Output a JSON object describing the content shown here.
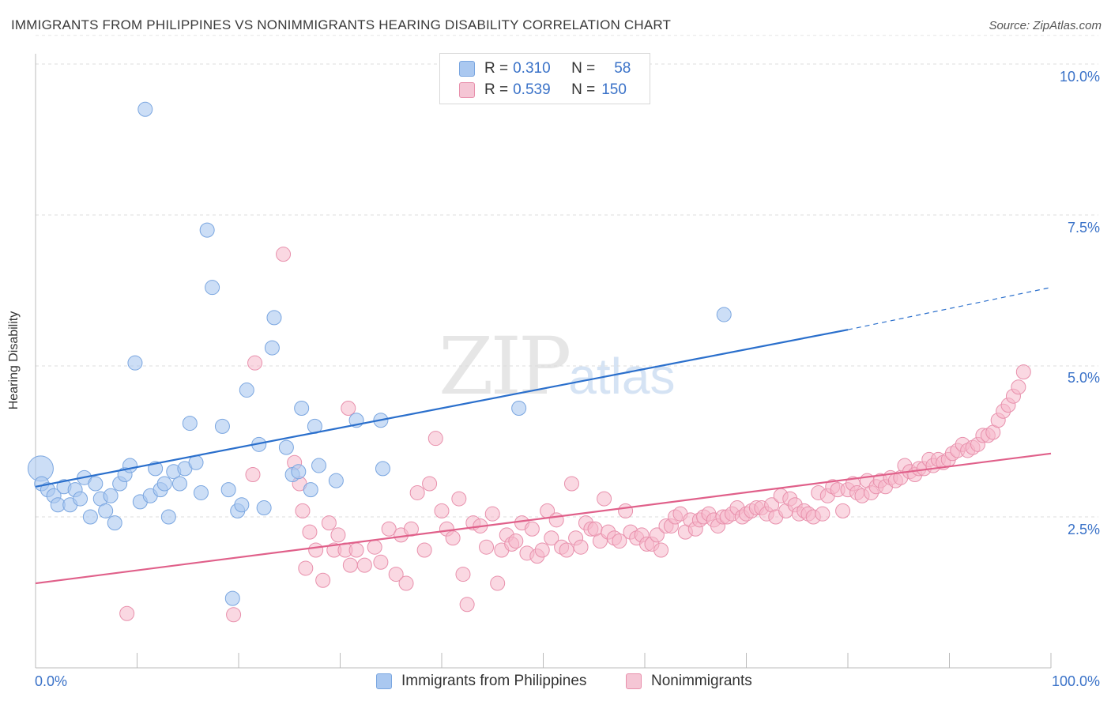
{
  "header": {
    "title": "IMMIGRANTS FROM PHILIPPINES VS NONIMMIGRANTS HEARING DISABILITY CORRELATION CHART",
    "source": "Source: ZipAtlas.com"
  },
  "watermark": {
    "zip": "ZIP",
    "atlas": "atlas"
  },
  "legend": {
    "rows": [
      {
        "r_label": "R =",
        "r_value": "0.310",
        "n_label": "N =",
        "n_value": "58"
      },
      {
        "r_label": "R =",
        "r_value": "0.539",
        "n_label": "N =",
        "n_value": "150"
      }
    ]
  },
  "bottom_legend": {
    "series1": "Immigrants from Philippines",
    "series2": "Nonimmigrants"
  },
  "axes": {
    "y_title": "Hearing Disability",
    "x_min_label": "0.0%",
    "x_max_label": "100.0%",
    "y_ticks": [
      "2.5%",
      "5.0%",
      "7.5%",
      "10.0%"
    ]
  },
  "colors": {
    "blue_fill": "#aac8f0",
    "blue_stroke": "#7aa6e0",
    "blue_line": "#2a6fcc",
    "pink_fill": "#f5b8cb",
    "pink_stroke": "#e890ac",
    "pink_line": "#e0608a",
    "accent_text": "#3a72c8"
  },
  "chart_data": {
    "type": "scatter",
    "title": "IMMIGRANTS FROM PHILIPPINES VS NONIMMIGRANTS HEARING DISABILITY CORRELATION CHART",
    "xlabel": "",
    "ylabel": "Hearing Disability",
    "xlim": [
      0,
      100
    ],
    "ylim": [
      0,
      10.5
    ],
    "grid": true,
    "legend_position": "top-center",
    "series": [
      {
        "name": "Immigrants from Philippines",
        "r": 0.31,
        "n": 58,
        "trend": {
          "x0": 0,
          "y0": 3.0,
          "x1": 80,
          "y1": 5.6,
          "dashed_to_x": 100,
          "dashed_to_y": 6.3
        },
        "points": [
          [
            0.5,
            3.3
          ],
          [
            0.6,
            3.05
          ],
          [
            1.2,
            2.95
          ],
          [
            1.8,
            2.85
          ],
          [
            2.2,
            2.7
          ],
          [
            2.8,
            3.0
          ],
          [
            3.4,
            2.7
          ],
          [
            3.9,
            2.95
          ],
          [
            4.4,
            2.8
          ],
          [
            4.8,
            3.15
          ],
          [
            5.4,
            2.5
          ],
          [
            5.9,
            3.05
          ],
          [
            6.4,
            2.8
          ],
          [
            6.9,
            2.6
          ],
          [
            7.4,
            2.85
          ],
          [
            7.8,
            2.4
          ],
          [
            8.3,
            3.05
          ],
          [
            8.8,
            3.2
          ],
          [
            9.3,
            3.35
          ],
          [
            9.8,
            5.05
          ],
          [
            10.3,
            2.75
          ],
          [
            10.8,
            9.25
          ],
          [
            11.3,
            2.85
          ],
          [
            11.8,
            3.3
          ],
          [
            12.3,
            2.95
          ],
          [
            12.7,
            3.05
          ],
          [
            13.1,
            2.5
          ],
          [
            13.6,
            3.25
          ],
          [
            14.2,
            3.05
          ],
          [
            14.7,
            3.3
          ],
          [
            15.2,
            4.05
          ],
          [
            15.8,
            3.4
          ],
          [
            16.3,
            2.9
          ],
          [
            16.9,
            7.25
          ],
          [
            17.4,
            6.3
          ],
          [
            18.4,
            4.0
          ],
          [
            19.0,
            2.95
          ],
          [
            19.4,
            1.15
          ],
          [
            19.9,
            2.6
          ],
          [
            20.3,
            2.7
          ],
          [
            20.8,
            4.6
          ],
          [
            22.0,
            3.7
          ],
          [
            22.5,
            2.65
          ],
          [
            23.3,
            5.3
          ],
          [
            23.5,
            5.8
          ],
          [
            24.7,
            3.65
          ],
          [
            25.3,
            3.2
          ],
          [
            25.9,
            3.25
          ],
          [
            26.2,
            4.3
          ],
          [
            27.1,
            2.95
          ],
          [
            27.5,
            4.0
          ],
          [
            27.9,
            3.35
          ],
          [
            29.6,
            3.1
          ],
          [
            31.6,
            4.1
          ],
          [
            34.0,
            4.1
          ],
          [
            34.2,
            3.3
          ],
          [
            47.6,
            4.3
          ],
          [
            67.8,
            5.85
          ]
        ]
      },
      {
        "name": "Nonimmigrants",
        "r": 0.539,
        "n": 150,
        "trend": {
          "x0": 0,
          "y0": 1.4,
          "x1": 100,
          "y1": 3.55
        },
        "points": [
          [
            9.0,
            0.9
          ],
          [
            19.5,
            0.88
          ],
          [
            21.4,
            3.2
          ],
          [
            21.6,
            5.05
          ],
          [
            24.4,
            6.85
          ],
          [
            25.5,
            3.4
          ],
          [
            26.0,
            3.05
          ],
          [
            26.3,
            2.6
          ],
          [
            26.6,
            1.65
          ],
          [
            27.0,
            2.25
          ],
          [
            27.6,
            1.95
          ],
          [
            28.3,
            1.45
          ],
          [
            28.9,
            2.4
          ],
          [
            29.4,
            1.95
          ],
          [
            29.8,
            2.2
          ],
          [
            30.5,
            1.95
          ],
          [
            30.8,
            4.3
          ],
          [
            31.0,
            1.7
          ],
          [
            31.6,
            1.95
          ],
          [
            32.4,
            1.7
          ],
          [
            33.4,
            2.0
          ],
          [
            34.0,
            1.75
          ],
          [
            34.8,
            2.3
          ],
          [
            35.5,
            1.55
          ],
          [
            36.0,
            2.2
          ],
          [
            36.5,
            1.4
          ],
          [
            37.0,
            2.3
          ],
          [
            37.6,
            2.9
          ],
          [
            38.3,
            1.95
          ],
          [
            38.8,
            3.05
          ],
          [
            39.4,
            3.8
          ],
          [
            40.0,
            2.6
          ],
          [
            40.5,
            2.3
          ],
          [
            41.1,
            2.15
          ],
          [
            41.7,
            2.8
          ],
          [
            42.1,
            1.55
          ],
          [
            42.5,
            1.05
          ],
          [
            43.1,
            2.4
          ],
          [
            43.8,
            2.35
          ],
          [
            44.4,
            2.0
          ],
          [
            45.0,
            2.55
          ],
          [
            45.5,
            1.4
          ],
          [
            45.9,
            1.95
          ],
          [
            46.4,
            2.2
          ],
          [
            46.9,
            2.05
          ],
          [
            47.3,
            2.1
          ],
          [
            47.9,
            2.4
          ],
          [
            48.4,
            1.9
          ],
          [
            48.9,
            2.3
          ],
          [
            49.4,
            1.85
          ],
          [
            49.9,
            1.95
          ],
          [
            50.4,
            2.6
          ],
          [
            50.8,
            2.15
          ],
          [
            51.3,
            2.45
          ],
          [
            51.8,
            2.0
          ],
          [
            52.3,
            1.95
          ],
          [
            52.8,
            3.05
          ],
          [
            53.2,
            2.15
          ],
          [
            53.7,
            2.0
          ],
          [
            54.2,
            2.4
          ],
          [
            54.7,
            2.3
          ],
          [
            55.1,
            2.3
          ],
          [
            55.6,
            2.1
          ],
          [
            56.0,
            2.8
          ],
          [
            56.4,
            2.25
          ],
          [
            57.0,
            2.15
          ],
          [
            57.5,
            2.1
          ],
          [
            58.1,
            2.6
          ],
          [
            58.6,
            2.25
          ],
          [
            59.2,
            2.15
          ],
          [
            59.7,
            2.2
          ],
          [
            60.2,
            2.05
          ],
          [
            60.7,
            2.05
          ],
          [
            61.2,
            2.2
          ],
          [
            61.6,
            1.95
          ],
          [
            62.1,
            2.35
          ],
          [
            62.6,
            2.35
          ],
          [
            63.0,
            2.5
          ],
          [
            63.5,
            2.55
          ],
          [
            64.0,
            2.25
          ],
          [
            64.5,
            2.45
          ],
          [
            65.0,
            2.3
          ],
          [
            65.4,
            2.45
          ],
          [
            65.8,
            2.5
          ],
          [
            66.3,
            2.55
          ],
          [
            66.8,
            2.45
          ],
          [
            67.2,
            2.35
          ],
          [
            67.7,
            2.5
          ],
          [
            68.1,
            2.5
          ],
          [
            68.6,
            2.55
          ],
          [
            69.1,
            2.65
          ],
          [
            69.6,
            2.5
          ],
          [
            70.0,
            2.55
          ],
          [
            70.5,
            2.6
          ],
          [
            71.0,
            2.65
          ],
          [
            71.5,
            2.65
          ],
          [
            72.0,
            2.55
          ],
          [
            72.5,
            2.7
          ],
          [
            72.9,
            2.5
          ],
          [
            73.4,
            2.85
          ],
          [
            73.9,
            2.6
          ],
          [
            74.3,
            2.8
          ],
          [
            74.8,
            2.7
          ],
          [
            75.2,
            2.55
          ],
          [
            75.7,
            2.6
          ],
          [
            76.1,
            2.55
          ],
          [
            76.6,
            2.5
          ],
          [
            77.1,
            2.9
          ],
          [
            77.5,
            2.55
          ],
          [
            78.0,
            2.85
          ],
          [
            78.5,
            3.0
          ],
          [
            79.0,
            2.95
          ],
          [
            79.5,
            2.6
          ],
          [
            80.0,
            2.95
          ],
          [
            80.5,
            3.05
          ],
          [
            80.9,
            2.9
          ],
          [
            81.4,
            2.85
          ],
          [
            81.9,
            3.1
          ],
          [
            82.3,
            2.9
          ],
          [
            82.8,
            3.0
          ],
          [
            83.2,
            3.1
          ],
          [
            83.7,
            3.0
          ],
          [
            84.2,
            3.15
          ],
          [
            84.7,
            3.1
          ],
          [
            85.2,
            3.15
          ],
          [
            85.6,
            3.35
          ],
          [
            86.1,
            3.25
          ],
          [
            86.6,
            3.2
          ],
          [
            87.0,
            3.3
          ],
          [
            87.5,
            3.3
          ],
          [
            88.0,
            3.45
          ],
          [
            88.4,
            3.35
          ],
          [
            88.9,
            3.45
          ],
          [
            89.4,
            3.4
          ],
          [
            89.9,
            3.45
          ],
          [
            90.3,
            3.55
          ],
          [
            90.8,
            3.6
          ],
          [
            91.3,
            3.7
          ],
          [
            91.8,
            3.6
          ],
          [
            92.3,
            3.65
          ],
          [
            92.8,
            3.7
          ],
          [
            93.3,
            3.85
          ],
          [
            93.8,
            3.85
          ],
          [
            94.3,
            3.9
          ],
          [
            94.8,
            4.1
          ],
          [
            95.3,
            4.25
          ],
          [
            95.8,
            4.35
          ],
          [
            96.3,
            4.5
          ],
          [
            96.8,
            4.65
          ],
          [
            97.3,
            4.9
          ]
        ]
      }
    ]
  }
}
